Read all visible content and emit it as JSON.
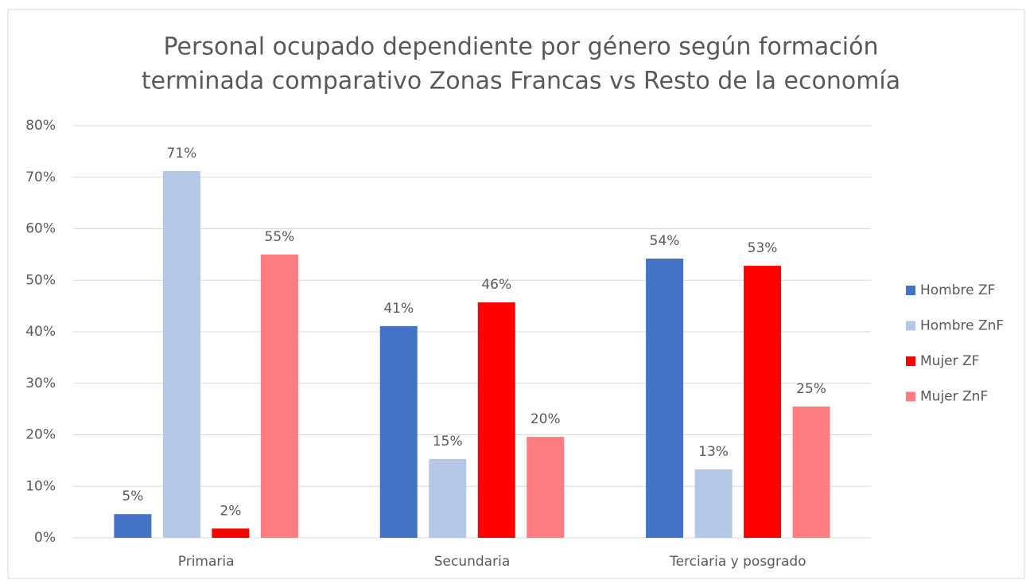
{
  "chart_data": {
    "type": "bar",
    "title": [
      "Personal ocupado dependiente por género según formación",
      "terminada comparativo Zonas Francas vs Resto de la economía"
    ],
    "categories": [
      "Primaria",
      "Secundaria",
      "Terciaria y posgrado"
    ],
    "series": [
      {
        "name": "Hombre ZF",
        "color": "#4472c4",
        "values": [
          4.6,
          41.1,
          54.2
        ],
        "value_labels": [
          "5%",
          "41%",
          "54%"
        ]
      },
      {
        "name": "Hombre ZnF",
        "color": "#b4c7e7",
        "values": [
          71.2,
          15.3,
          13.3
        ],
        "value_labels": [
          "71%",
          "15%",
          "13%"
        ]
      },
      {
        "name": "Mujer ZF",
        "color": "#ff0000",
        "values": [
          1.8,
          45.7,
          52.8
        ],
        "value_labels": [
          "2%",
          "46%",
          "53%"
        ]
      },
      {
        "name": "Mujer ZnF",
        "color": "#ff7c80",
        "values": [
          55.0,
          19.6,
          25.5
        ],
        "value_labels": [
          "55%",
          "20%",
          "25%"
        ]
      }
    ],
    "ylim": [
      0,
      80
    ],
    "yticks": [
      {
        "value": 0,
        "label": "0%"
      },
      {
        "value": 10,
        "label": "10%"
      },
      {
        "value": 20,
        "label": "20%"
      },
      {
        "value": 30,
        "label": "30%"
      },
      {
        "value": 40,
        "label": "40%"
      },
      {
        "value": 50,
        "label": "50%"
      },
      {
        "value": 60,
        "label": "60%"
      },
      {
        "value": 70,
        "label": "70%"
      },
      {
        "value": 80,
        "label": "80%"
      }
    ],
    "grid": true,
    "legend": "right"
  }
}
